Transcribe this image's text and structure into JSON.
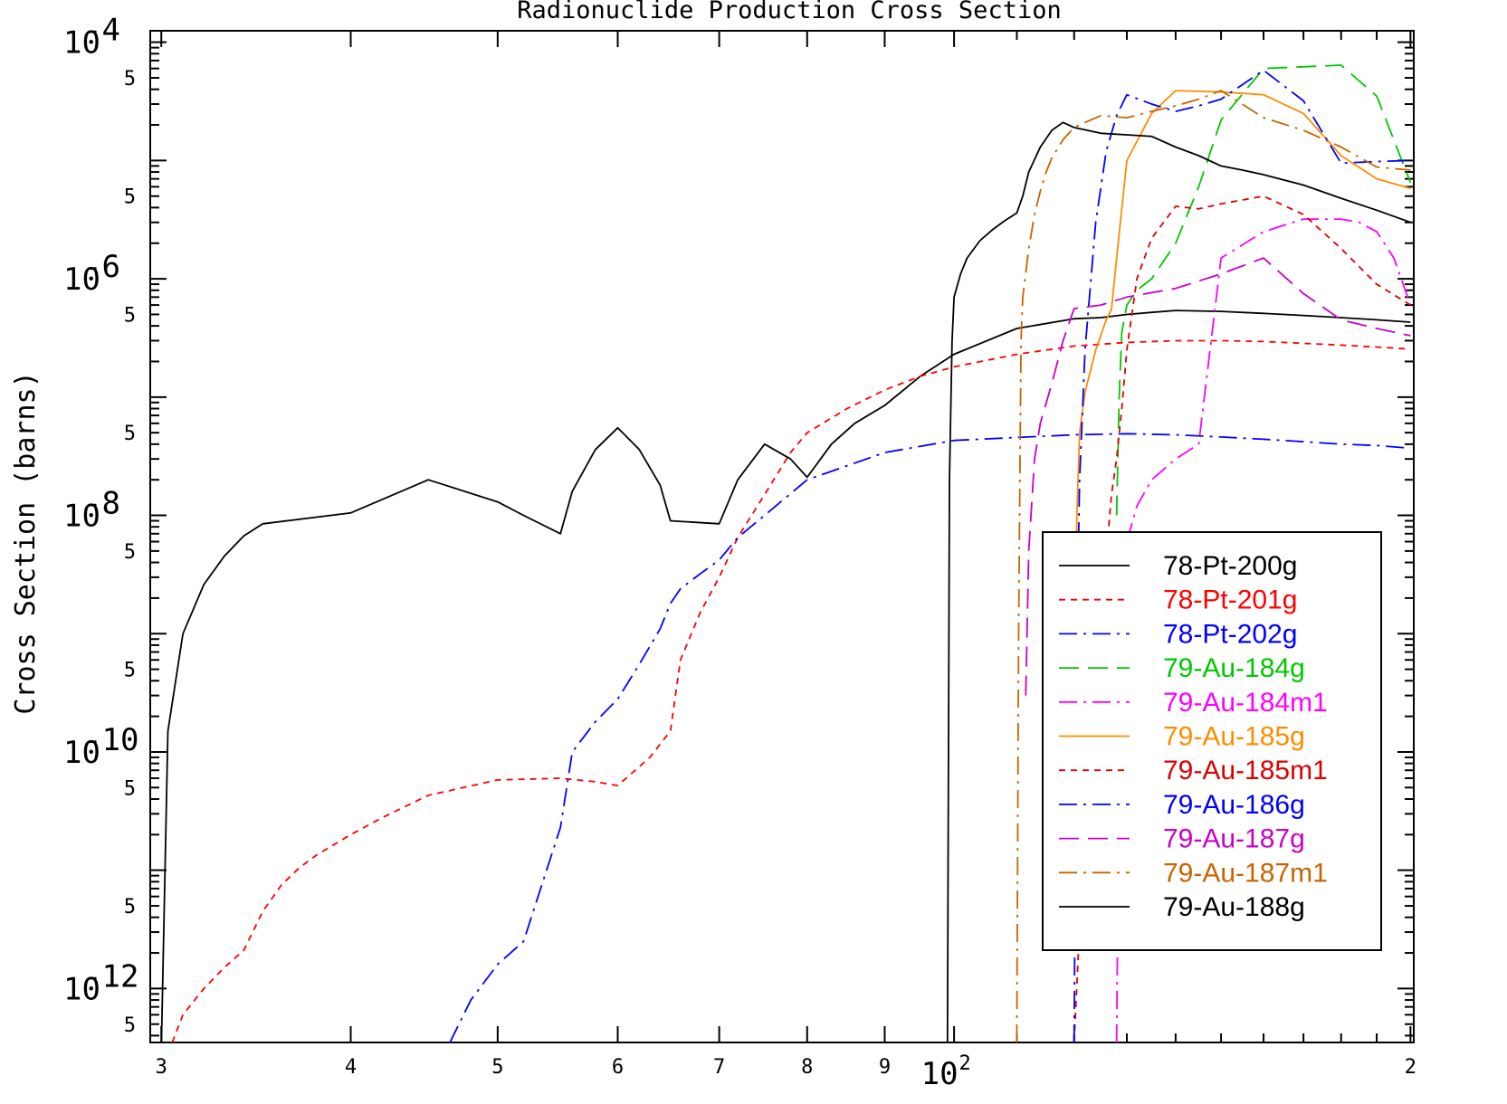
{
  "chart_data": {
    "type": "line",
    "title": "Radionuclide Production Cross Section",
    "xlabel": "",
    "ylabel": "Cross Section (barns)",
    "x_scale": "log",
    "y_scale": "log",
    "xlim": [
      29.5,
      201
    ],
    "ylim": [
      3.5e-13,
      0.000125
    ],
    "x_ticks": [
      {
        "value": 30,
        "label": "3"
      },
      {
        "value": 40,
        "label": "4"
      },
      {
        "value": 50,
        "label": "5"
      },
      {
        "value": 60,
        "label": "6"
      },
      {
        "value": 70,
        "label": "7"
      },
      {
        "value": 80,
        "label": "8"
      },
      {
        "value": 90,
        "label": "9"
      },
      {
        "value": 100,
        "label_base": "10",
        "label_exp": "2"
      },
      {
        "value": 200,
        "label": "2"
      }
    ],
    "y_decades": [
      {
        "value": 0.0001,
        "base": "10",
        "exp": "-4"
      },
      {
        "value": 1e-06,
        "base": "10",
        "exp": "-6"
      },
      {
        "value": 1e-08,
        "base": "10",
        "exp": "-8"
      },
      {
        "value": 1e-10,
        "base": "10",
        "exp": "-10"
      },
      {
        "value": 1e-12,
        "base": "10",
        "exp": "-12"
      }
    ],
    "y_minor_label": "5",
    "legend_position": "lower-right",
    "series": [
      {
        "name": "78-Pt-200g",
        "color": "#000000",
        "dash": "solid",
        "x": [
          30,
          30.3,
          31,
          32,
          33,
          34,
          35,
          40,
          45,
          50,
          52,
          55,
          56,
          58,
          60,
          62,
          64,
          65,
          70,
          72,
          75,
          78,
          80,
          83,
          86,
          90,
          95,
          100,
          110,
          120,
          125,
          130,
          135,
          140,
          150,
          160,
          170,
          180,
          190,
          200
        ],
        "y": [
          3e-13,
          1.5e-10,
          1e-09,
          2.6e-09,
          4.5e-09,
          6.7e-09,
          8.5e-09,
          1.05e-08,
          2e-08,
          1.3e-08,
          1e-08,
          7e-09,
          1.6e-08,
          3.6e-08,
          5.5e-08,
          3.6e-08,
          1.8e-08,
          9e-09,
          8.5e-09,
          2e-08,
          4e-08,
          3e-08,
          2.1e-08,
          4e-08,
          6e-08,
          8.5e-08,
          1.5e-07,
          2.3e-07,
          3.8e-07,
          4.6e-07,
          4.7e-07,
          5e-07,
          5.2e-07,
          5.4e-07,
          5.3e-07,
          5.1e-07,
          4.9e-07,
          4.7e-07,
          4.5e-07,
          4.3e-07
        ]
      },
      {
        "name": "78-Pt-201g",
        "color": "#ff0000",
        "dash": "short",
        "x": [
          30.5,
          31,
          32,
          33,
          34,
          35,
          36,
          37,
          38,
          40,
          42,
          45,
          50,
          55,
          58,
          60,
          63,
          65,
          66,
          68,
          70,
          72,
          75,
          78,
          80,
          85,
          90,
          95,
          100,
          110,
          120,
          130,
          140,
          150,
          160,
          170,
          180,
          190,
          200
        ],
        "y": [
          3.5e-13,
          6e-13,
          1e-12,
          1.5e-12,
          2.1e-12,
          4.5e-12,
          7.5e-12,
          1.05e-11,
          1.35e-11,
          2e-11,
          2.8e-11,
          4.3e-11,
          5.8e-11,
          6e-11,
          5.6e-11,
          5.2e-11,
          9e-11,
          1.5e-10,
          6e-10,
          1.5e-09,
          3e-09,
          6.5e-09,
          1.5e-08,
          3.4e-08,
          5e-08,
          8e-08,
          1.15e-07,
          1.5e-07,
          1.8e-07,
          2.3e-07,
          2.7e-07,
          2.9e-07,
          3e-07,
          3e-07,
          2.95e-07,
          2.85e-07,
          2.75e-07,
          2.65e-07,
          2.55e-07
        ]
      },
      {
        "name": "78-Pt-202g",
        "color": "#0000ff",
        "dash": "dashdot",
        "x": [
          46.5,
          48,
          50,
          52,
          55,
          56,
          58,
          60,
          62,
          64,
          65,
          66,
          68,
          70,
          72,
          75,
          80,
          90,
          100,
          120,
          130,
          140,
          150,
          160,
          170,
          180,
          190,
          200
        ],
        "y": [
          3.5e-13,
          8e-13,
          1.6e-12,
          2.5e-12,
          2.3e-11,
          1e-10,
          1.8e-10,
          2.8e-10,
          5.5e-10,
          1.1e-09,
          1.8e-09,
          2.4e-09,
          3.2e-09,
          4.2e-09,
          6.5e-09,
          1e-08,
          2e-08,
          3.4e-08,
          4.3e-08,
          4.8e-08,
          4.9e-08,
          4.8e-08,
          4.6e-08,
          4.4e-08,
          4.2e-08,
          4e-08,
          3.9e-08,
          3.7e-08
        ]
      },
      {
        "name": "79-Au-184g",
        "color": "#00c800",
        "dash": "longdash",
        "x": [
          128,
          128.5,
          129,
          130,
          132,
          135,
          140,
          145,
          150,
          160,
          170,
          180,
          190,
          200
        ],
        "y": [
          1e-08,
          1e-07,
          3.5e-07,
          6e-07,
          8e-07,
          1e-06,
          2e-06,
          6e-06,
          2.2e-05,
          6e-05,
          6.2e-05,
          6.4e-05,
          3.5e-05,
          6.5e-06
        ]
      },
      {
        "name": "79-Au-184m1",
        "color": "#ff00ff",
        "dash": "dashdot",
        "x": [
          128,
          128.5,
          129,
          130,
          132,
          135,
          140,
          145,
          150,
          160,
          170,
          180,
          185,
          190,
          195,
          200
        ],
        "y": [
          3.5e-13,
          1e-10,
          3e-09,
          6e-09,
          1.2e-08,
          2e-08,
          3e-08,
          4e-08,
          1.5e-06,
          2.5e-06,
          3.2e-06,
          3.2e-06,
          3e-06,
          2.5e-06,
          1.5e-06,
          6e-07
        ]
      },
      {
        "name": "79-Au-185g",
        "color": "#ff8c00",
        "dash": "solid",
        "x": [
          120,
          120.5,
          121,
          122,
          124,
          126,
          127,
          128,
          130,
          135,
          140,
          150,
          160,
          170,
          180,
          190,
          200
        ],
        "y": [
          3e-10,
          1e-08,
          5e-08,
          1.1e-07,
          2.5e-07,
          4.5e-07,
          5.5e-07,
          1.5e-06,
          1e-05,
          2.5e-05,
          3.9e-05,
          3.8e-05,
          3.6e-05,
          2.5e-05,
          1.1e-05,
          7e-06,
          5.8e-06
        ]
      },
      {
        "name": "79-Au-185m1",
        "color": "#dc0000",
        "dash": "short",
        "x": [
          120,
          122,
          124,
          126,
          127,
          128,
          129,
          130,
          132,
          135,
          140,
          145,
          150,
          160,
          170,
          180,
          190,
          200
        ],
        "y": [
          3.5e-13,
          3e-11,
          6e-10,
          4.5e-09,
          1.5e-08,
          3e-08,
          8e-08,
          2.5e-07,
          1e-06,
          2.2e-06,
          4.1e-06,
          3.9e-06,
          4.3e-06,
          5e-06,
          3.5e-06,
          1.8e-06,
          9e-07,
          6e-07
        ]
      },
      {
        "name": "79-Au-186g",
        "color": "#0000ff",
        "dash": "dashdot",
        "x": [
          120,
          120.5,
          121,
          122,
          124,
          126,
          128,
          130,
          135,
          140,
          145,
          150,
          160,
          170,
          180,
          190,
          200
        ],
        "y": [
          3.5e-13,
          1e-09,
          2e-08,
          2.5e-07,
          3e-06,
          1.2e-05,
          2.4e-05,
          3.6e-05,
          3e-05,
          2.6e-05,
          2.9e-05,
          3.3e-05,
          5.8e-05,
          3.2e-05,
          9.5e-06,
          9.8e-06,
          1e-05
        ]
      },
      {
        "name": "79-Au-187g",
        "color": "#c800c8",
        "dash": "longdash",
        "x": [
          111.5,
          112,
          113,
          114,
          116,
          118,
          120,
          125,
          130,
          140,
          150,
          160,
          170,
          180,
          190,
          200
        ],
        "y": [
          3e-10,
          5e-09,
          3e-08,
          6e-08,
          1.3e-07,
          3e-07,
          5.6e-07,
          6e-07,
          7e-07,
          8.3e-07,
          1.1e-06,
          1.5e-06,
          7.5e-07,
          4.5e-07,
          3.8e-07,
          3.3e-07
        ]
      },
      {
        "name": "79-Au-187m1",
        "color": "#c86400",
        "dash": "dashdot",
        "x": [
          110,
          110.3,
          110.7,
          111,
          112,
          113,
          114,
          115,
          116,
          118,
          120,
          122,
          125,
          130,
          135,
          140,
          145,
          150,
          160,
          170,
          180,
          190,
          200
        ],
        "y": [
          3.5e-13,
          1e-09,
          3e-07,
          7e-07,
          1.8e-06,
          3.5e-06,
          5.5e-06,
          8e-06,
          1.05e-05,
          1.5e-05,
          1.9e-05,
          2.1e-05,
          2.4e-05,
          2.3e-05,
          2.6e-05,
          2.9e-05,
          3.3e-05,
          3.9e-05,
          2.3e-05,
          1.8e-05,
          1.3e-05,
          8.8e-06,
          8.3e-06
        ]
      },
      {
        "name": "79-Au-188g",
        "color": "#000000",
        "dash": "solid",
        "x": [
          99,
          99.3,
          99.7,
          100,
          101,
          102,
          104,
          106,
          108,
          110,
          111,
          112,
          114,
          116,
          118,
          120,
          125,
          130,
          135,
          140,
          145,
          150,
          155,
          160,
          170,
          180,
          190,
          200
        ],
        "y": [
          3.5e-13,
          2e-08,
          3e-07,
          7e-07,
          1.1e-06,
          1.5e-06,
          2.1e-06,
          2.6e-06,
          3.1e-06,
          3.6e-06,
          5e-06,
          8e-06,
          1.3e-05,
          1.8e-05,
          2.1e-05,
          1.9e-05,
          1.7e-05,
          1.65e-05,
          1.6e-05,
          1.3e-05,
          1.1e-05,
          9e-06,
          8.3e-06,
          7.6e-06,
          6.2e-06,
          4.8e-06,
          3.8e-06,
          3e-06
        ]
      }
    ]
  }
}
